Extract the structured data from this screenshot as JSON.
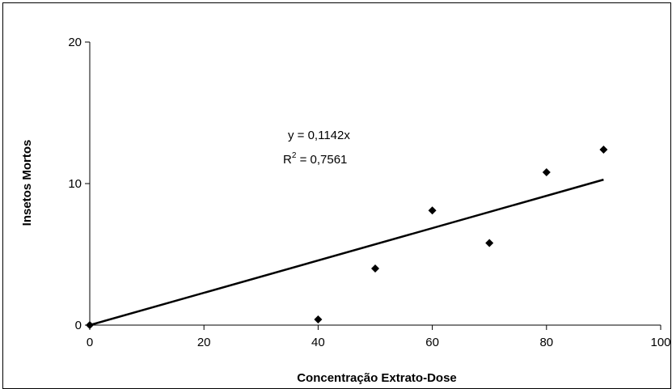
{
  "chart_data": {
    "type": "scatter",
    "title": "",
    "xlabel": "Concentração Extrato-Dose",
    "ylabel": "Insetos Mortos",
    "xlim": [
      0,
      100
    ],
    "ylim": [
      0,
      20
    ],
    "x_ticks": [
      0,
      20,
      40,
      60,
      80,
      100
    ],
    "y_ticks": [
      0,
      10,
      20
    ],
    "x_tick_labels": [
      "0",
      "20",
      "40",
      "60",
      "80",
      "100"
    ],
    "y_tick_labels": [
      "0",
      "10",
      "20"
    ],
    "grid": false,
    "legend": "none",
    "series": [
      {
        "marker": "diamond",
        "color": "#000000",
        "points": [
          {
            "x": 0,
            "y": 0
          },
          {
            "x": 40,
            "y": 0.4
          },
          {
            "x": 50,
            "y": 4
          },
          {
            "x": 60,
            "y": 8.1
          },
          {
            "x": 70,
            "y": 5.8
          },
          {
            "x": 80,
            "y": 10.8
          },
          {
            "x": 90,
            "y": 12.4
          }
        ]
      }
    ],
    "trendline": {
      "type": "linear",
      "slope": 0.1142,
      "intercept": 0,
      "x_range": [
        0,
        90
      ],
      "color": "#000000",
      "equation_label": "y = 0,1142x",
      "r2_prefix": "R",
      "r2_superscript": "2",
      "r2_suffix": " = 0,7561"
    }
  }
}
